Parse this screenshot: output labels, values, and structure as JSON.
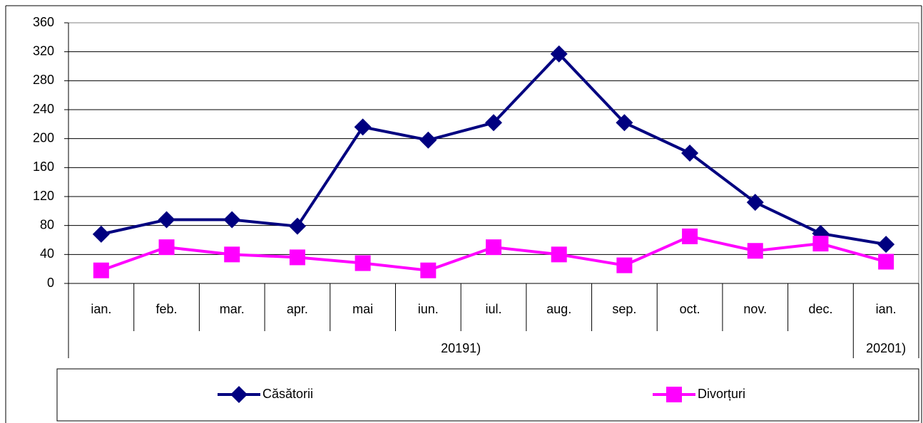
{
  "chart_data": {
    "type": "line",
    "categories": [
      "ian.",
      "feb.",
      "mar.",
      "apr.",
      "mai",
      "iun.",
      "iul.",
      "aug.",
      "sep.",
      "oct.",
      "nov.",
      "dec.",
      "ian."
    ],
    "groups": [
      {
        "label": "20191)",
        "span": 12
      },
      {
        "label": "20201)",
        "span": 1
      }
    ],
    "series": [
      {
        "name": "Căsătorii",
        "color": "#000080",
        "marker": "diamond",
        "values": [
          68,
          88,
          88,
          79,
          216,
          198,
          222,
          317,
          222,
          180,
          112,
          69,
          54
        ]
      },
      {
        "name": "Divorțuri",
        "color": "#ff00ff",
        "marker": "square",
        "values": [
          18,
          50,
          40,
          36,
          28,
          18,
          50,
          40,
          25,
          65,
          45,
          55,
          30
        ]
      }
    ],
    "ylim": [
      0,
      360
    ],
    "yticks": [
      0,
      40,
      80,
      120,
      160,
      200,
      240,
      280,
      320,
      360
    ],
    "grid": true,
    "legend": "bottom"
  }
}
